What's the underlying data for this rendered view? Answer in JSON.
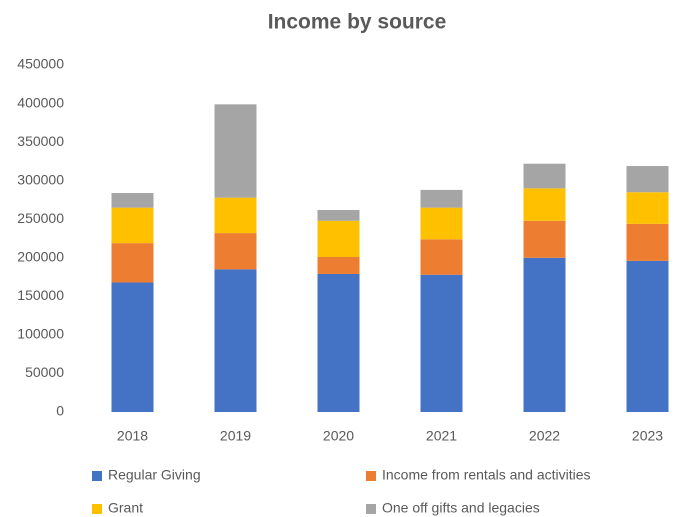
{
  "chart_data": {
    "type": "stacked_bar",
    "title": "Income by source",
    "categories": [
      "2018",
      "2019",
      "2020",
      "2021",
      "2022",
      "2023"
    ],
    "series": [
      {
        "name": "Regular Giving",
        "color": "#4472c4",
        "values": [
          168000,
          185000,
          179000,
          178000,
          200000,
          196000
        ]
      },
      {
        "name": "Income from rentals and activities",
        "color": "#ed7d31",
        "values": [
          51000,
          47000,
          22000,
          46000,
          48000,
          48000
        ]
      },
      {
        "name": "Grant",
        "color": "#ffc000",
        "values": [
          46000,
          46000,
          47000,
          41000,
          42000,
          41000
        ]
      },
      {
        "name": "One off gifts and legacies",
        "color": "#a5a5a5",
        "values": [
          19000,
          121000,
          14000,
          23000,
          32000,
          34000
        ]
      }
    ],
    "ylim": [
      0,
      450000
    ],
    "yticks": [
      0,
      50000,
      100000,
      150000,
      200000,
      250000,
      300000,
      350000,
      400000,
      450000
    ],
    "grid": false,
    "legend": "bottom"
  }
}
